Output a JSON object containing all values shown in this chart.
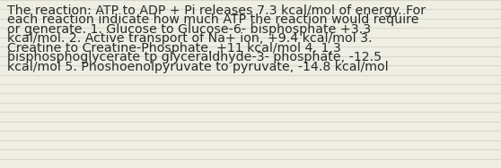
{
  "wrapped_lines": [
    "The reaction: ATP to ADP + Pi releases 7.3 kcal/mol of energy. For",
    "each reaction indicate how much ATP the reaction would require",
    "or generate. 1. Glucose to Glucose-6- bisphosphate +3.3",
    "kcal/mol. 2. Active transport of Na+ ion, +9.4 kcal/mol 3.",
    "Creatine to Creatine-Phosphate, +11 kcal/mol 4. 1,3",
    "bisphosphoglycerate tp glyceraldhyde-3- phosphate, -12.5",
    "kcal/mol 5. Phoshoenolpyruvate to pyruvate, -14.8 kcal/mol"
  ],
  "bg_color": "#eeeee4",
  "line_color": "#d8d8cc",
  "text_color": "#2a2a2a",
  "font_size": 10.2,
  "fig_width": 5.58,
  "fig_height": 1.88,
  "dpi": 100
}
